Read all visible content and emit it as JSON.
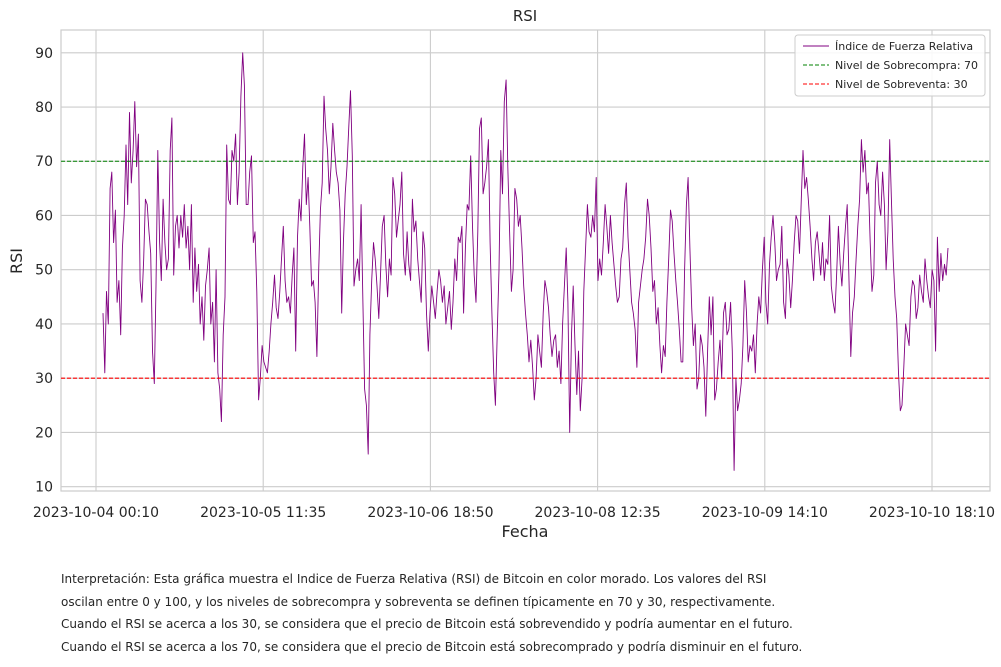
{
  "chart_data": {
    "type": "line",
    "title": "RSI",
    "xlabel": "Fecha",
    "ylabel": "RSI",
    "ylim": [
      9.2,
      94.2
    ],
    "y_ticks": [
      10,
      20,
      30,
      40,
      50,
      60,
      70,
      80,
      90
    ],
    "x_tick_labels": [
      "2023-10-04 00:10",
      "2023-10-05 11:35",
      "2023-10-06 18:50",
      "2023-10-08 12:35",
      "2023-10-09 14:10",
      "2023-10-10 18:10"
    ],
    "grid": true,
    "legend_position": "top-right",
    "series": [
      {
        "name": "Índice de Fuerza Relativa",
        "color": "#800080",
        "values": [
          42,
          31,
          46,
          40,
          65,
          68,
          55,
          61,
          44,
          48,
          38,
          54,
          60,
          73,
          62,
          79,
          66,
          72,
          81,
          69,
          75,
          48,
          44,
          52,
          63,
          62,
          57,
          53,
          35,
          29,
          47,
          72,
          55,
          48,
          63,
          55,
          50,
          52,
          72,
          78,
          49,
          58,
          60,
          54,
          60,
          56,
          62,
          54,
          58,
          50,
          62,
          44,
          54,
          46,
          51,
          40,
          45,
          37,
          47,
          50,
          54,
          40,
          44,
          33,
          50,
          31,
          28,
          22,
          38,
          45,
          73,
          63,
          62,
          72,
          70,
          75,
          62,
          68,
          82,
          90,
          84,
          62,
          62,
          68,
          71,
          55,
          57,
          46,
          26,
          30,
          36,
          33,
          32,
          31,
          35,
          40,
          44,
          49,
          43,
          41,
          46,
          52,
          58,
          48,
          44,
          45,
          42,
          49,
          54,
          35,
          56,
          63,
          59,
          69,
          75,
          62,
          67,
          58,
          47,
          48,
          44,
          34,
          50,
          61,
          66,
          82,
          76,
          72,
          64,
          69,
          77,
          72,
          68,
          66,
          61,
          42,
          55,
          64,
          69,
          76,
          83,
          71,
          47,
          50,
          52,
          48,
          62,
          44,
          28,
          25,
          16,
          38,
          48,
          55,
          52,
          47,
          41,
          49,
          58,
          60,
          51,
          45,
          52,
          49,
          67,
          64,
          56,
          59,
          62,
          68,
          53,
          49,
          57,
          51,
          48,
          63,
          57,
          59,
          52,
          48,
          44,
          57,
          54,
          42,
          35,
          42,
          47,
          44,
          41,
          46,
          50,
          48,
          44,
          47,
          40,
          43,
          46,
          39,
          44,
          52,
          48,
          56,
          55,
          58,
          42,
          54,
          62,
          61,
          71,
          58,
          49,
          44,
          57,
          76,
          78,
          64,
          66,
          69,
          74,
          55,
          42,
          31,
          25,
          38,
          50,
          72,
          64,
          81,
          85,
          69,
          57,
          46,
          50,
          65,
          63,
          58,
          60,
          54,
          47,
          42,
          38,
          33,
          37,
          32,
          26,
          30,
          38,
          35,
          32,
          42,
          48,
          46,
          43,
          38,
          34,
          37,
          38,
          32,
          35,
          29,
          40,
          47,
          54,
          44,
          20,
          38,
          47,
          36,
          27,
          35,
          24,
          30,
          46,
          54,
          62,
          57,
          56,
          60,
          57,
          67,
          48,
          52,
          49,
          55,
          62,
          58,
          53,
          60,
          55,
          51,
          47,
          44,
          45,
          52,
          54,
          62,
          66,
          56,
          50,
          44,
          42,
          39,
          32,
          44,
          47,
          50,
          52,
          56,
          63,
          60,
          54,
          46,
          48,
          40,
          43,
          36,
          31,
          36,
          34,
          44,
          52,
          61,
          59,
          53,
          48,
          44,
          39,
          33,
          33,
          50,
          62,
          67,
          54,
          43,
          36,
          40,
          28,
          30,
          38,
          36,
          32,
          23,
          35,
          45,
          38,
          45,
          26,
          28,
          33,
          37,
          30,
          42,
          44,
          38,
          39,
          44,
          35,
          13,
          30,
          24,
          26,
          29,
          36,
          48,
          42,
          33,
          36,
          35,
          38,
          31,
          40,
          45,
          42,
          50,
          56,
          44,
          40,
          51,
          56,
          60,
          55,
          48,
          50,
          51,
          58,
          44,
          41,
          52,
          49,
          43,
          48,
          55,
          60,
          59,
          53,
          63,
          72,
          65,
          67,
          63,
          58,
          52,
          48,
          55,
          57,
          53,
          49,
          55,
          48,
          52,
          51,
          60,
          47,
          44,
          42,
          49,
          58,
          51,
          47,
          53,
          58,
          62,
          48,
          34,
          42,
          45,
          52,
          58,
          63,
          74,
          68,
          72,
          64,
          66,
          55,
          46,
          49,
          66,
          70,
          62,
          60,
          68,
          62,
          50,
          57,
          74,
          63,
          52,
          45,
          41,
          31,
          24,
          25,
          32,
          40,
          38,
          36,
          45,
          48,
          47,
          41,
          43,
          49,
          46,
          44,
          52,
          48,
          45,
          43,
          50,
          48,
          35,
          56,
          46,
          53,
          48,
          51,
          49,
          54
        ]
      },
      {
        "name": "Nivel de Sobrecompra: 70",
        "color": "#008000",
        "style": "dashed",
        "constant": 70
      },
      {
        "name": "Nivel de Sobreventa: 30",
        "color": "#ff0000",
        "style": "dashed",
        "constant": 30
      }
    ]
  },
  "interpretation": [
    "Interpretación: Esta gráfica muestra el Indice de Fuerza Relativa (RSI) de Bitcoin en color morado. Los valores del RSI",
    "oscilan entre 0 y 100, y los niveles de sobrecompra y sobreventa se definen típicamente en 70 y 30, respectivamente.",
    "Cuando el RSI se acerca a los 30, se considera que el precio de Bitcoin está sobrevendido y podría aumentar en el futuro.",
    "Cuando el RSI se acerca a los 70, se considera que el precio de Bitcoin está sobrecomprado y podría disminuir en el futuro."
  ]
}
